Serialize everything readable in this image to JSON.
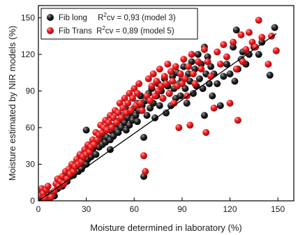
{
  "chart_data": {
    "type": "scatter",
    "xlabel": "Moisture determined in laboratory (%)",
    "ylabel": "Moisture estimated by NIR models (%)",
    "xlim": [
      0,
      160
    ],
    "ylim": [
      0,
      160
    ],
    "xticks": [
      0,
      30,
      60,
      90,
      120,
      150
    ],
    "yticks": [
      0,
      30,
      60,
      90,
      120,
      150
    ],
    "legend_position": "top-left",
    "grid": false,
    "fit_line": {
      "x": [
        0,
        149
      ],
      "y": [
        0,
        137
      ]
    },
    "series": [
      {
        "name": "Fib long",
        "r2_label": "R",
        "r2_sup": "2",
        "r2_rest": "cv = 0,93 (model 3)",
        "color": "#111111",
        "points": [
          [
            0,
            2
          ],
          [
            1,
            0
          ],
          [
            2,
            5
          ],
          [
            3,
            1
          ],
          [
            5,
            3
          ],
          [
            6,
            0
          ],
          [
            8,
            6
          ],
          [
            10,
            4
          ],
          [
            12,
            10
          ],
          [
            13,
            14
          ],
          [
            15,
            12
          ],
          [
            16,
            18
          ],
          [
            18,
            16
          ],
          [
            19,
            22
          ],
          [
            20,
            20
          ],
          [
            21,
            25
          ],
          [
            22,
            21
          ],
          [
            24,
            28
          ],
          [
            25,
            24
          ],
          [
            26,
            30
          ],
          [
            27,
            26
          ],
          [
            28,
            32
          ],
          [
            29,
            36
          ],
          [
            30,
            30
          ],
          [
            30,
            58
          ],
          [
            31,
            34
          ],
          [
            32,
            40
          ],
          [
            33,
            36
          ],
          [
            34,
            42
          ],
          [
            35,
            45
          ],
          [
            36,
            38
          ],
          [
            37,
            48
          ],
          [
            38,
            44
          ],
          [
            39,
            50
          ],
          [
            40,
            46
          ],
          [
            41,
            55
          ],
          [
            42,
            48
          ],
          [
            43,
            52
          ],
          [
            44,
            60
          ],
          [
            45,
            50
          ],
          [
            45,
            42
          ],
          [
            46,
            57
          ],
          [
            47,
            53
          ],
          [
            48,
            62
          ],
          [
            49,
            58
          ],
          [
            50,
            56
          ],
          [
            51,
            66
          ],
          [
            52,
            60
          ],
          [
            53,
            70
          ],
          [
            54,
            64
          ],
          [
            55,
            58
          ],
          [
            55,
            75
          ],
          [
            56,
            68
          ],
          [
            57,
            62
          ],
          [
            58,
            72
          ],
          [
            59,
            66
          ],
          [
            60,
            76
          ],
          [
            61,
            70
          ],
          [
            62,
            65
          ],
          [
            62,
            80
          ],
          [
            63,
            74
          ],
          [
            64,
            86
          ],
          [
            65,
            78
          ],
          [
            66,
            52
          ],
          [
            66,
            20
          ],
          [
            67,
            82
          ],
          [
            68,
            70
          ],
          [
            69,
            88
          ],
          [
            70,
            76
          ],
          [
            71,
            92
          ],
          [
            72,
            80
          ],
          [
            73,
            68
          ],
          [
            74,
            86
          ],
          [
            75,
            96
          ],
          [
            76,
            78
          ],
          [
            77,
            90
          ],
          [
            78,
            84
          ],
          [
            79,
            100
          ],
          [
            80,
            72
          ],
          [
            81,
            94
          ],
          [
            82,
            88
          ],
          [
            83,
            78
          ],
          [
            84,
            102
          ],
          [
            85,
            92
          ],
          [
            86,
            84
          ],
          [
            87,
            105
          ],
          [
            88,
            96
          ],
          [
            89,
            86
          ],
          [
            90,
            100
          ],
          [
            91,
            110
          ],
          [
            92,
            92
          ],
          [
            93,
            80
          ],
          [
            94,
            104
          ],
          [
            95,
            98
          ],
          [
            96,
            114
          ],
          [
            97,
            88
          ],
          [
            98,
            108
          ],
          [
            99,
            94
          ],
          [
            100,
            120
          ],
          [
            101,
            100
          ],
          [
            102,
            112
          ],
          [
            103,
            92
          ],
          [
            104,
            126
          ],
          [
            104,
            70
          ],
          [
            105,
            104
          ],
          [
            106,
            118
          ],
          [
            107,
            96
          ],
          [
            108,
            110
          ],
          [
            109,
            86
          ],
          [
            110,
            104
          ],
          [
            112,
            96
          ],
          [
            114,
            78
          ],
          [
            116,
            102
          ],
          [
            118,
            112
          ],
          [
            120,
            104
          ],
          [
            122,
            126
          ],
          [
            123,
            98
          ],
          [
            124,
            140
          ],
          [
            125,
            108
          ],
          [
            127,
            116
          ],
          [
            128,
            122
          ],
          [
            130,
            112
          ],
          [
            132,
            120
          ],
          [
            135,
            126
          ],
          [
            138,
            120
          ],
          [
            140,
            130
          ],
          [
            145,
            103
          ],
          [
            148,
            142
          ]
        ]
      },
      {
        "name": "Fib Trans",
        "r2_label": "R",
        "r2_sup": "2",
        "r2_rest": "cv = 0,89 (model 5)",
        "color": "#e0171c",
        "points": [
          [
            0,
            8
          ],
          [
            1,
            4
          ],
          [
            2,
            10
          ],
          [
            3,
            6
          ],
          [
            4,
            2
          ],
          [
            5,
            9
          ],
          [
            6,
            12
          ],
          [
            8,
            3
          ],
          [
            10,
            8
          ],
          [
            11,
            14
          ],
          [
            12,
            18
          ],
          [
            13,
            12
          ],
          [
            14,
            16
          ],
          [
            15,
            20
          ],
          [
            16,
            14
          ],
          [
            17,
            24
          ],
          [
            18,
            18
          ],
          [
            19,
            26
          ],
          [
            20,
            22
          ],
          [
            21,
            30
          ],
          [
            22,
            24
          ],
          [
            23,
            28
          ],
          [
            24,
            34
          ],
          [
            25,
            30
          ],
          [
            26,
            38
          ],
          [
            27,
            32
          ],
          [
            28,
            36
          ],
          [
            29,
            42
          ],
          [
            30,
            38
          ],
          [
            31,
            46
          ],
          [
            32,
            40
          ],
          [
            33,
            44
          ],
          [
            34,
            50
          ],
          [
            35,
            46
          ],
          [
            36,
            56
          ],
          [
            37,
            50
          ],
          [
            38,
            54
          ],
          [
            39,
            62
          ],
          [
            40,
            56
          ],
          [
            41,
            60
          ],
          [
            42,
            66
          ],
          [
            43,
            58
          ],
          [
            44,
            64
          ],
          [
            45,
            70
          ],
          [
            46,
            60
          ],
          [
            47,
            68
          ],
          [
            48,
            74
          ],
          [
            49,
            64
          ],
          [
            50,
            72
          ],
          [
            51,
            80
          ],
          [
            52,
            68
          ],
          [
            53,
            76
          ],
          [
            54,
            84
          ],
          [
            55,
            72
          ],
          [
            56,
            80
          ],
          [
            57,
            88
          ],
          [
            58,
            74
          ],
          [
            59,
            84
          ],
          [
            60,
            92
          ],
          [
            61,
            78
          ],
          [
            62,
            88
          ],
          [
            63,
            96
          ],
          [
            64,
            80
          ],
          [
            65,
            74
          ],
          [
            66,
            37
          ],
          [
            67,
            24
          ],
          [
            68,
            86
          ],
          [
            69,
            100
          ],
          [
            70,
            82
          ],
          [
            71,
            94
          ],
          [
            72,
            104
          ],
          [
            73,
            86
          ],
          [
            74,
            98
          ],
          [
            75,
            90
          ],
          [
            76,
            108
          ],
          [
            77,
            94
          ],
          [
            78,
            84
          ],
          [
            79,
            102
          ],
          [
            80,
            96
          ],
          [
            81,
            112
          ],
          [
            82,
            88
          ],
          [
            83,
            106
          ],
          [
            84,
            98
          ],
          [
            85,
            80
          ],
          [
            86,
            110
          ],
          [
            87,
            94
          ],
          [
            88,
            60
          ],
          [
            89,
            104
          ],
          [
            90,
            96
          ],
          [
            91,
            116
          ],
          [
            92,
            100
          ],
          [
            93,
            86
          ],
          [
            94,
            110
          ],
          [
            95,
            62
          ],
          [
            96,
            120
          ],
          [
            97,
            104
          ],
          [
            98,
            96
          ],
          [
            100,
            114
          ],
          [
            102,
            108
          ],
          [
            104,
            124
          ],
          [
            105,
            56
          ],
          [
            106,
            114
          ],
          [
            108,
            102
          ],
          [
            110,
            76
          ],
          [
            112,
            122
          ],
          [
            114,
            112
          ],
          [
            116,
            128
          ],
          [
            118,
            118
          ],
          [
            120,
            80
          ],
          [
            122,
            130
          ],
          [
            124,
            108
          ],
          [
            125,
            66
          ],
          [
            127,
            136
          ],
          [
            128,
            114
          ],
          [
            130,
            124
          ],
          [
            132,
            138
          ],
          [
            134,
            130
          ],
          [
            136,
            126
          ],
          [
            138,
            148
          ],
          [
            140,
            134
          ],
          [
            144,
            112
          ],
          [
            146,
            135
          ],
          [
            149,
            123
          ]
        ]
      }
    ]
  }
}
